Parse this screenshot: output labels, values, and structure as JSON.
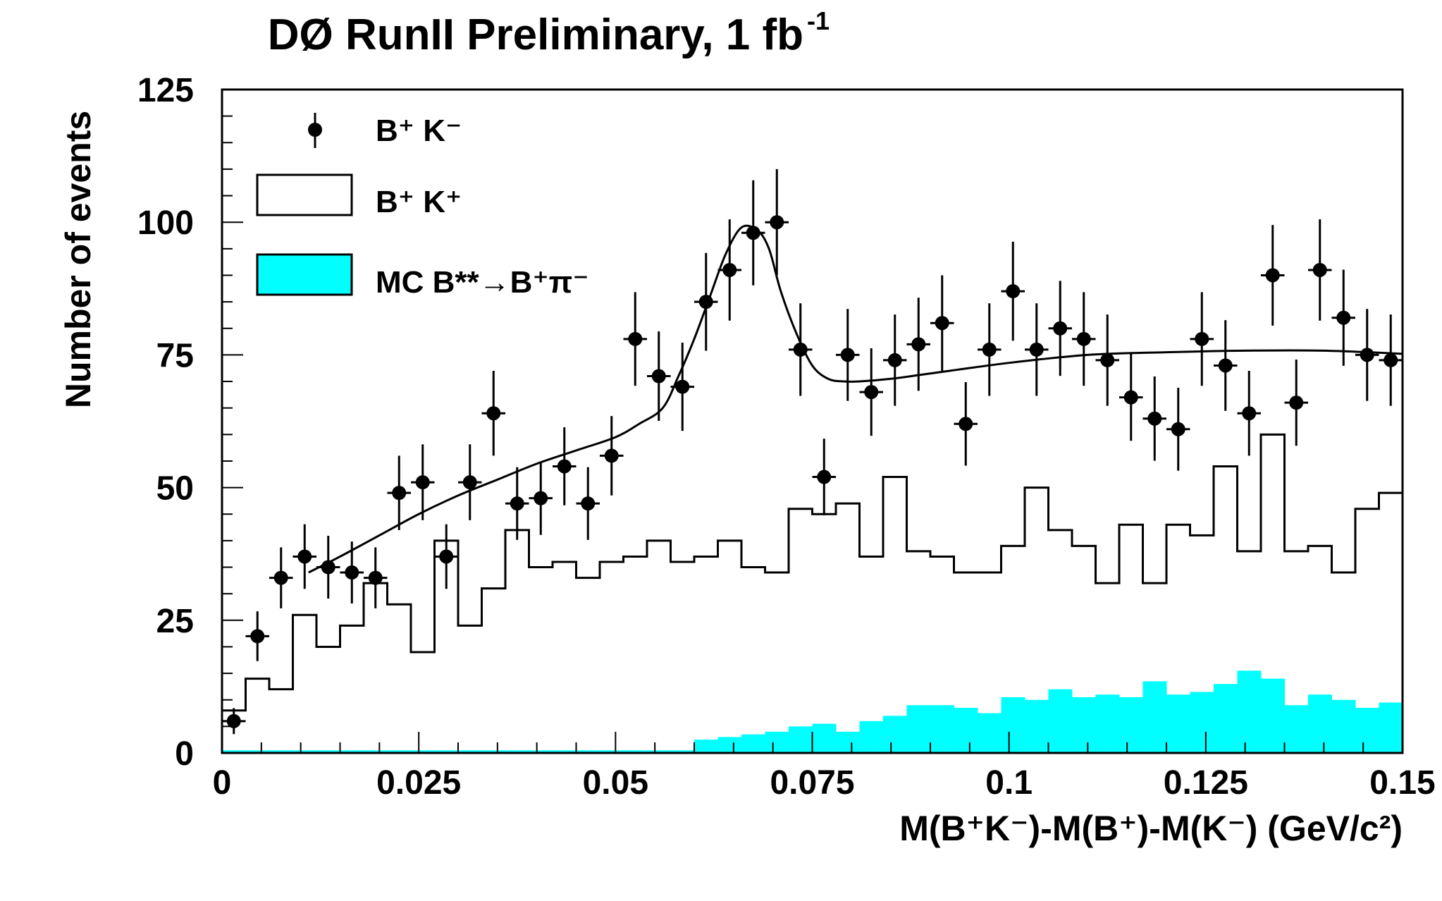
{
  "chart_data": {
    "type": "histogram-with-data-points",
    "title": "DØ RunII  Preliminary,  1 fb",
    "title_superscript": "-1",
    "xlabel": "M(B⁺K⁻)-M(B⁺)-M(K⁻) (GeV/c²)",
    "ylabel": "Number of events",
    "xlim": [
      0,
      0.15
    ],
    "ylim": [
      0,
      125
    ],
    "x_ticks": [
      0,
      0.025,
      0.05,
      0.075,
      0.1,
      0.125,
      0.15
    ],
    "x_tick_labels": [
      "0",
      "0.025",
      "0.05",
      "0.075",
      "0.1",
      "0.125",
      "0.15"
    ],
    "y_ticks": [
      0,
      25,
      50,
      75,
      100,
      125
    ],
    "y_tick_labels": [
      "0",
      "25",
      "50",
      "75",
      "100",
      "125"
    ],
    "bin_width": 0.003,
    "legend": {
      "position": "top-left",
      "entries": [
        {
          "label": "B⁺ K⁻",
          "style": "data-points"
        },
        {
          "label": "B⁺ K⁺",
          "style": "open-histogram"
        },
        {
          "label": "MC B**→B⁺π⁻",
          "style": "filled-histogram"
        }
      ]
    },
    "series": [
      {
        "name": "B⁺ K⁻",
        "style": "points-with-errors",
        "x": [
          0.0015,
          0.0045,
          0.0075,
          0.0105,
          0.0135,
          0.0165,
          0.0195,
          0.0225,
          0.0255,
          0.0285,
          0.0315,
          0.0345,
          0.0375,
          0.0405,
          0.0435,
          0.0465,
          0.0495,
          0.0525,
          0.0555,
          0.0585,
          0.0615,
          0.0645,
          0.0675,
          0.0705,
          0.0735,
          0.0765,
          0.0795,
          0.0825,
          0.0855,
          0.0885,
          0.0915,
          0.0945,
          0.0975,
          0.1005,
          0.1035,
          0.1065,
          0.1095,
          0.1125,
          0.1155,
          0.1185,
          0.1215,
          0.1245,
          0.1275,
          0.1305,
          0.1335,
          0.1365,
          0.1395,
          0.1425,
          0.1455,
          0.1485
        ],
        "values": [
          6,
          22,
          33,
          37,
          35,
          34,
          33,
          49,
          51,
          37,
          51,
          64,
          47,
          48,
          54,
          47,
          56,
          78,
          71,
          69,
          85,
          91,
          98,
          100,
          76,
          52,
          75,
          68,
          74,
          77,
          81,
          62,
          76,
          87,
          76,
          80,
          78,
          74,
          67,
          63,
          61,
          78,
          73,
          64,
          90,
          66,
          91,
          82,
          75,
          74
        ]
      },
      {
        "name": "B⁺ K⁺",
        "style": "open-histogram",
        "values": [
          8,
          14,
          12,
          26,
          20,
          24,
          32,
          28,
          19,
          40,
          24,
          31,
          42,
          35,
          36,
          33,
          36,
          37,
          40,
          36,
          37,
          40,
          35,
          34,
          46,
          45,
          47,
          37,
          52,
          38,
          37,
          34,
          34,
          39,
          50,
          42,
          39,
          32,
          43,
          32,
          43,
          41,
          54,
          38,
          60,
          38,
          39,
          34,
          46,
          49
        ]
      },
      {
        "name": "MC B**→B⁺π⁻",
        "style": "filled-histogram",
        "color": "#00ffff",
        "values": [
          0.5,
          0.5,
          0.5,
          0.5,
          0.5,
          0.5,
          0.5,
          0.5,
          0.5,
          0.5,
          0.5,
          0.5,
          0.5,
          0.5,
          0.5,
          0.5,
          0.5,
          0.5,
          0.5,
          0.5,
          2.5,
          3,
          3.5,
          4,
          5,
          5.5,
          4,
          6,
          7,
          9,
          9,
          8.5,
          7.5,
          10.5,
          10,
          12,
          10.5,
          11,
          10.5,
          13.5,
          11,
          11.5,
          13,
          15.5,
          14,
          9,
          11,
          10,
          8.5,
          9.5
        ]
      },
      {
        "name": "fit",
        "style": "line",
        "x": [
          0.011,
          0.015,
          0.02,
          0.025,
          0.03,
          0.035,
          0.04,
          0.045,
          0.05,
          0.053,
          0.056,
          0.058,
          0.06,
          0.062,
          0.064,
          0.066,
          0.068,
          0.0695,
          0.071,
          0.073,
          0.075,
          0.077,
          0.079,
          0.081,
          0.085,
          0.09,
          0.1,
          0.11,
          0.12,
          0.13,
          0.14,
          0.15
        ],
        "values": [
          34,
          37,
          41,
          45,
          48.5,
          51.5,
          54.5,
          57,
          59.5,
          62,
          65,
          71,
          78,
          86,
          94,
          99,
          98.5,
          95,
          87,
          79,
          73,
          70.5,
          70,
          70,
          70.5,
          71.5,
          73.5,
          75,
          75.5,
          75.8,
          75.8,
          75.2
        ]
      }
    ]
  }
}
